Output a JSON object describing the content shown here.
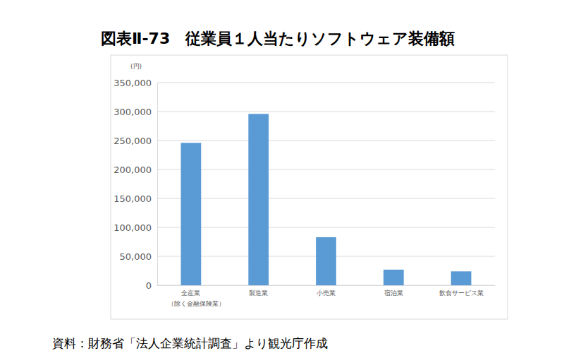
{
  "chart_data": {
    "type": "bar",
    "title": "図表Ⅱ-73　従業員１人当たりソフトウェア装備額",
    "y_label": "(円)",
    "source": "資料：財務省「法人企業統計調査」より観光庁作成",
    "categories": [
      "全産業\n（除く金融保険業）",
      "製造業",
      "小売業",
      "宿泊業",
      "飲食サービス業"
    ],
    "values": [
      246000,
      296000,
      83000,
      27000,
      24000
    ],
    "color": "#5b9bd5",
    "ylim": [
      0,
      350000
    ],
    "yticks": [
      0,
      {
        "value": 50000,
        "label": "50,000"
      },
      {
        "value": 100000,
        "label": "100,000"
      },
      {
        "value": 150000,
        "label": "150,000"
      },
      {
        "value": 200000,
        "label": "200,000"
      },
      {
        "value": 250000,
        "label": "250,000"
      },
      {
        "value": 300000,
        "label": "300,000"
      },
      {
        "value": 350000,
        "label": "350,000"
      }
    ],
    "grid": true
  }
}
